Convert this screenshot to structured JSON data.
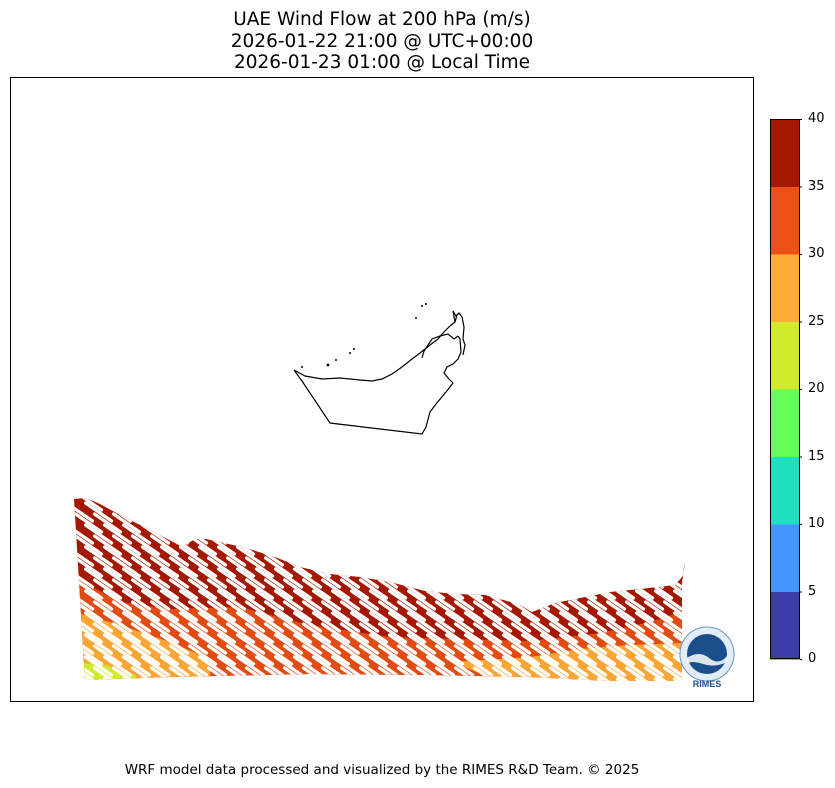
{
  "title": {
    "line1": "UAE Wind Flow at 200 hPa (m/s)",
    "line2": "2026-01-22 21:00 @ UTC+00:00",
    "line3": "2026-01-23 01:00 @ Local Time"
  },
  "colorbar": {
    "ticks": [
      "0",
      "5",
      "10",
      "15",
      "20",
      "25",
      "30",
      "35",
      "40"
    ],
    "colors": [
      "#3c3ca8",
      "#4395ff",
      "#1de0c0",
      "#66ff5a",
      "#cfeb2c",
      "#ffab35",
      "#ec5014",
      "#a51800"
    ]
  },
  "map_field": {
    "variable": "wind speed",
    "units": "m/s",
    "band_colors": {
      "gt35": "#a51800",
      "30_35": "#e24c12",
      "25_30": "#faa534",
      "20_25": "#cfeb2c"
    },
    "vector_color": "#ffffff"
  },
  "logo": {
    "text": "RIMES"
  },
  "footer": "WRF model data processed and visualized by the RIMES R&D Team. © 2025"
}
